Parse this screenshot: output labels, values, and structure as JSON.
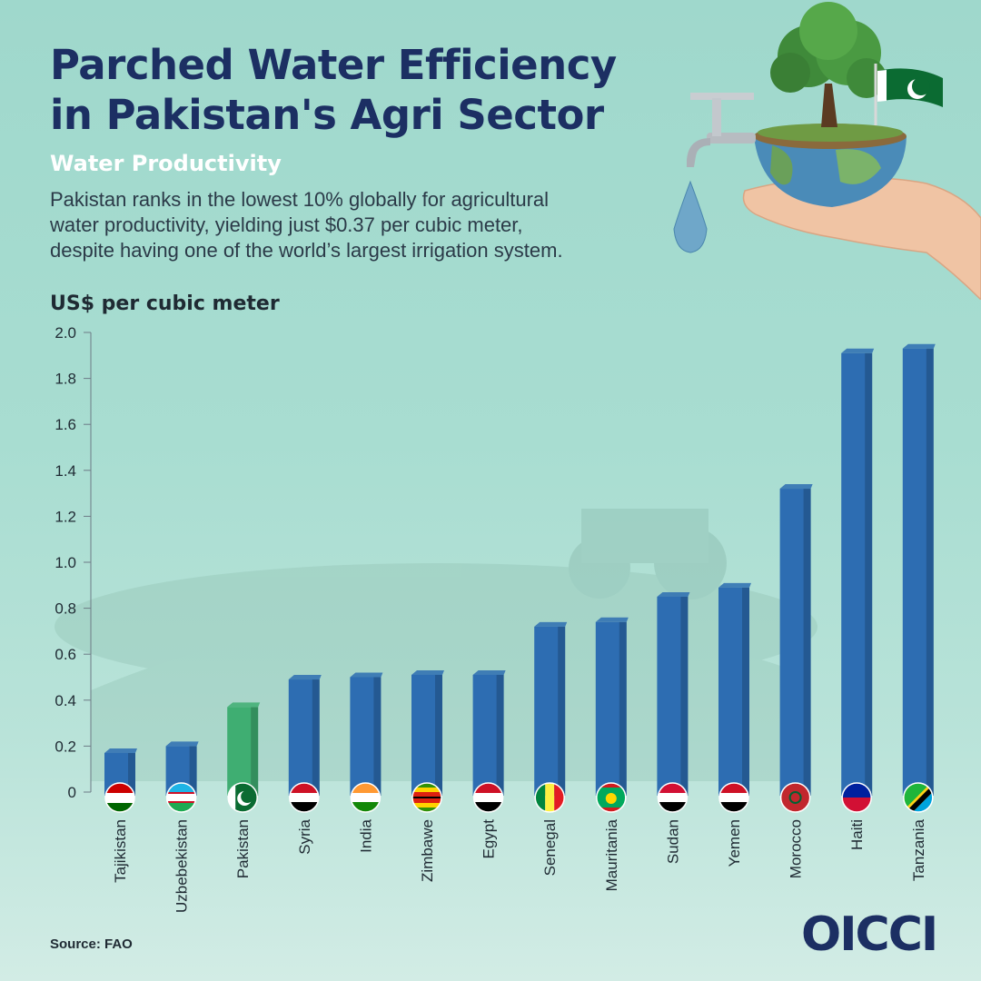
{
  "header": {
    "title_line1": "Parched Water Efficiency",
    "title_line2": "in Pakistan's Agri Sector",
    "subtitle": "Water Productivity",
    "description_line1": "Pakistan ranks in the lowest 10% globally for agricultural",
    "description_line2": "water productivity, yielding just $0.37 per cubic meter,",
    "description_line3": "despite having one of the world’s largest irrigation system."
  },
  "footer": {
    "source": "Source: FAO",
    "logo_text": "OICCI"
  },
  "hero_icons": [
    "water-tap-icon",
    "globe-bowl-icon",
    "tree-icon",
    "pakistan-flag-icon",
    "hand-icon",
    "water-drop-icon"
  ],
  "colors": {
    "title": "#1c2f63",
    "bar": "#2d6db2",
    "bar_highlight": "#3fae72",
    "background": "#a8ddd1"
  },
  "chart_data": {
    "type": "bar",
    "ylabel": "US$ per cubic meter",
    "ylim": [
      0,
      2.0
    ],
    "yticks": [
      "0",
      "0.2",
      "0.4",
      "0.6",
      "0.8",
      "1.0",
      "1.2",
      "1.4",
      "1.6",
      "1.8",
      "2.0"
    ],
    "categories": [
      "Tajikistan",
      "Uzbebekistan",
      "Pakistan",
      "Syria",
      "India",
      "Zimbawe",
      "Egypt",
      "Senegal",
      "Mauritania",
      "Sudan",
      "Yemen",
      "Morocco",
      "Haiti",
      "Tanzania"
    ],
    "values": [
      0.17,
      0.2,
      0.37,
      0.49,
      0.5,
      0.51,
      0.51,
      0.72,
      0.74,
      0.85,
      0.89,
      1.32,
      1.91,
      1.93
    ],
    "highlight": "Pakistan",
    "grid": false
  }
}
